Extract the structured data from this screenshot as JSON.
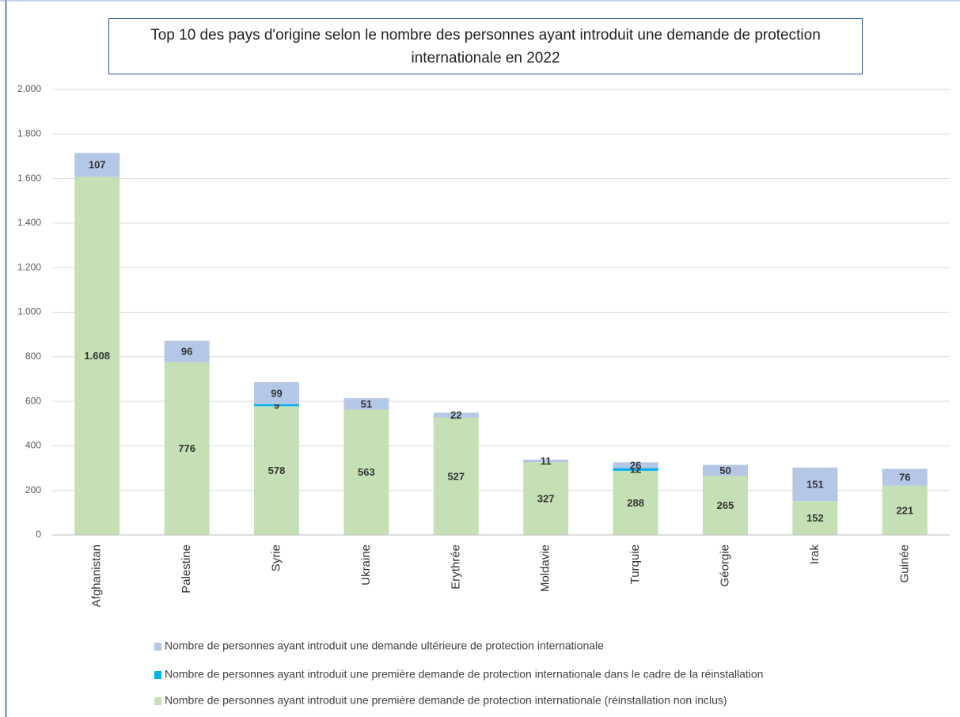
{
  "chart_data": {
    "type": "stacked-bar",
    "title": "Top 10 des pays d'origine selon le nombre des personnes ayant introduit une demande de protection internationale en 2022",
    "categories": [
      "Afghanistan",
      "Palestine",
      "Syrie",
      "Ukraine",
      "Erythrée",
      "Moldavie",
      "Turquie",
      "Géorgie",
      "Irak",
      "Guinée"
    ],
    "series": [
      {
        "name": "Nombre de personnes ayant introduit une première demande de protection internationale (réinstallation non inclus)",
        "color": "#c5e0b4",
        "values": [
          1608,
          776,
          578,
          563,
          527,
          327,
          288,
          265,
          152,
          221
        ],
        "value_labels": [
          "1.608",
          "776",
          "578",
          "563",
          "527",
          "327",
          "288",
          "265",
          "152",
          "221"
        ]
      },
      {
        "name": "Nombre de personnes ayant introduit une première demande de protection internationale dans le cadre de la réinstallation",
        "color": "#00b0f0",
        "values": [
          null,
          null,
          9,
          null,
          null,
          null,
          12,
          null,
          null,
          null
        ]
      },
      {
        "name": "Nombre de personnes ayant introduit une demande ultérieure de protection internationale",
        "color": "#b4c7e7",
        "values": [
          107,
          96,
          99,
          51,
          22,
          11,
          26,
          50,
          151,
          76
        ]
      }
    ],
    "ylim": [
      0,
      2000
    ],
    "yticks": [
      0,
      200,
      400,
      600,
      800,
      {
        "value": 1000,
        "label": "1.000"
      },
      {
        "value": 1200,
        "label": "1.200"
      },
      {
        "value": 1400,
        "label": "1.400"
      },
      {
        "value": 1600,
        "label": "1.600"
      },
      {
        "value": 1800,
        "label": "1.800"
      },
      {
        "value": 2000,
        "label": "2.000"
      }
    ],
    "grid": true
  }
}
